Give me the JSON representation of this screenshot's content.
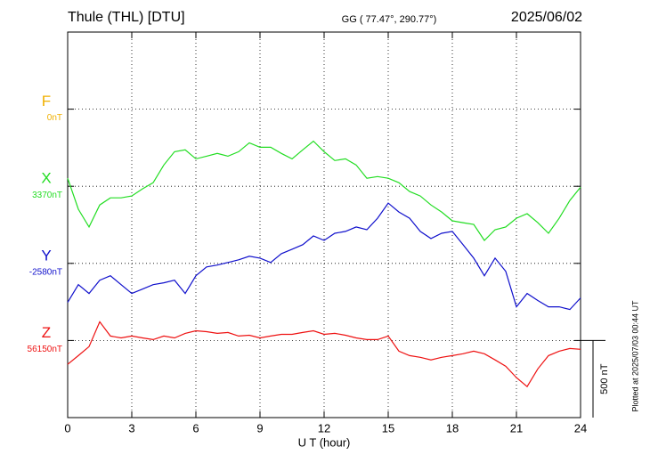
{
  "chart_data": {
    "type": "line",
    "title": "Thule (THL)  [DTU]",
    "subtitle": "GG ( 77.47°, 290.77°)",
    "date": "2025/06/02",
    "x_label": "U T (hour)",
    "note": "Plotted at 2025/07/03 00:44 UT",
    "xlim": [
      0,
      24
    ],
    "xticks": [
      0,
      3,
      6,
      9,
      12,
      15,
      18,
      21,
      24
    ],
    "grid": true,
    "scale_bar": {
      "value": 500,
      "label": "500 nT"
    },
    "x": [
      0,
      0.5,
      1,
      1.5,
      2,
      2.5,
      3,
      3.5,
      4,
      4.5,
      5,
      5.5,
      6,
      6.5,
      7,
      7.5,
      8,
      8.5,
      9,
      9.5,
      10,
      10.5,
      11,
      11.5,
      12,
      12.5,
      13,
      13.5,
      14,
      14.5,
      15,
      15.5,
      16,
      16.5,
      17,
      17.5,
      18,
      18.5,
      19,
      19.5,
      20,
      20.5,
      21,
      21.5,
      22,
      22.5,
      23,
      23.5,
      24
    ],
    "series": [
      {
        "name": "F",
        "color": "#f0b000",
        "base": {
          "value": 0,
          "label": "0nT"
        },
        "values": [
          null,
          null,
          null,
          null,
          null,
          null,
          null,
          null,
          null,
          null,
          null,
          null,
          null,
          null,
          null,
          null,
          null,
          null,
          null,
          null,
          null,
          null,
          null,
          null,
          null,
          null,
          null,
          null,
          null,
          null,
          null,
          null,
          null,
          null,
          null,
          null,
          null,
          null,
          null,
          null,
          null,
          null,
          null,
          null,
          null,
          null,
          null,
          null,
          null
        ]
      },
      {
        "name": "X",
        "color": "#22dd22",
        "base": {
          "value": 3370,
          "label": "3370nT"
        },
        "values": [
          3422,
          3221,
          3106,
          3249,
          3295,
          3295,
          3307,
          3353,
          3393,
          3508,
          3594,
          3606,
          3548,
          3565,
          3583,
          3565,
          3594,
          3652,
          3623,
          3623,
          3583,
          3548,
          3606,
          3663,
          3594,
          3537,
          3548,
          3508,
          3422,
          3433,
          3422,
          3393,
          3336,
          3307,
          3249,
          3203,
          3146,
          3134,
          3123,
          3019,
          3088,
          3106,
          3163,
          3192,
          3134,
          3065,
          3163,
          3278,
          3364
        ]
      },
      {
        "name": "Y",
        "color": "#1010cc",
        "base": {
          "value": -2580,
          "label": "-2580nT"
        },
        "values": [
          -2833,
          -2718,
          -2775,
          -2689,
          -2660,
          -2718,
          -2775,
          -2747,
          -2718,
          -2706,
          -2689,
          -2775,
          -2660,
          -2603,
          -2591,
          -2574,
          -2557,
          -2534,
          -2546,
          -2574,
          -2517,
          -2488,
          -2459,
          -2402,
          -2431,
          -2385,
          -2373,
          -2344,
          -2362,
          -2287,
          -2189,
          -2247,
          -2287,
          -2373,
          -2419,
          -2385,
          -2373,
          -2459,
          -2546,
          -2660,
          -2546,
          -2632,
          -2862,
          -2775,
          -2821,
          -2862,
          -2862,
          -2879,
          -2804
        ]
      },
      {
        "name": "Z",
        "color": "#ee1111",
        "base": {
          "value": 56150,
          "label": "56150nT"
        },
        "values": [
          55995,
          56052,
          56110,
          56271,
          56179,
          56167,
          56179,
          56167,
          56156,
          56179,
          56167,
          56196,
          56213,
          56207,
          56196,
          56202,
          56179,
          56184,
          56167,
          56179,
          56190,
          56190,
          56202,
          56213,
          56190,
          56196,
          56184,
          56167,
          56156,
          56156,
          56179,
          56081,
          56052,
          56041,
          56024,
          56041,
          56052,
          56064,
          56081,
          56064,
          56024,
          55983,
          55909,
          55851,
          55966,
          56052,
          56081,
          56098,
          56093
        ]
      }
    ]
  }
}
